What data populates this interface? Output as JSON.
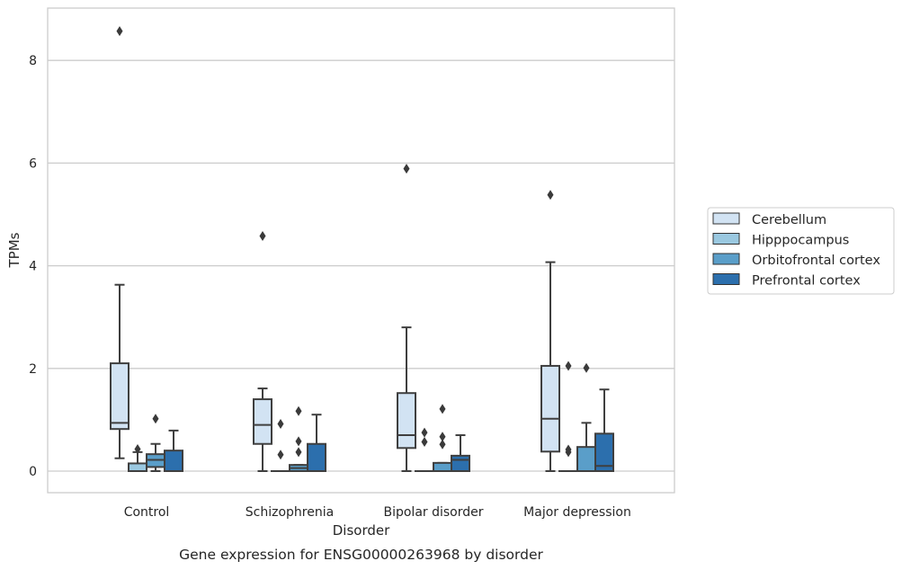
{
  "chart_data": {
    "type": "box",
    "caption": "Gene expression for ENSG00000263968 by disorder",
    "xlabel": "Disorder",
    "ylabel": "TPMs",
    "ylim": [
      -0.42,
      9.05
    ],
    "yticks": [
      0,
      2,
      4,
      6,
      8
    ],
    "grid": "horizontal",
    "legend_position": "right",
    "categories": [
      "Control",
      "Schizophrenia",
      "Bipolar disorder",
      "Major depression"
    ],
    "series": [
      {
        "name": "Cerebellum",
        "color": "#d2e3f3",
        "boxes": [
          {
            "whislo": 0.25,
            "q1": 0.82,
            "med": 0.94,
            "q3": 2.1,
            "whishi": 3.63,
            "fliers": [
              8.57
            ]
          },
          {
            "whislo": 0.0,
            "q1": 0.53,
            "med": 0.9,
            "q3": 1.4,
            "whishi": 1.61,
            "fliers": [
              4.58
            ]
          },
          {
            "whislo": 0.0,
            "q1": 0.45,
            "med": 0.7,
            "q3": 1.52,
            "whishi": 2.8,
            "fliers": [
              5.89
            ]
          },
          {
            "whislo": 0.0,
            "q1": 0.38,
            "med": 1.02,
            "q3": 2.05,
            "whishi": 4.07,
            "fliers": [
              5.38
            ]
          }
        ]
      },
      {
        "name": "Hipppocampus",
        "color": "#9ac8e0",
        "boxes": [
          {
            "whislo": 0.0,
            "q1": 0.0,
            "med": 0.0,
            "q3": 0.15,
            "whishi": 0.37,
            "fliers": [
              0.43
            ]
          },
          {
            "whislo": 0.0,
            "q1": 0.0,
            "med": 0.0,
            "q3": 0.0,
            "whishi": 0.0,
            "fliers": [
              0.92,
              0.32
            ]
          },
          {
            "whislo": 0.0,
            "q1": 0.0,
            "med": 0.0,
            "q3": 0.0,
            "whishi": 0.0,
            "fliers": [
              0.75,
              0.57
            ]
          },
          {
            "whislo": 0.0,
            "q1": 0.0,
            "med": 0.0,
            "q3": 0.0,
            "whishi": 0.0,
            "fliers": [
              2.05,
              0.42,
              0.37
            ]
          }
        ]
      },
      {
        "name": "Orbitofrontal cortex",
        "color": "#5a9ec9",
        "boxes": [
          {
            "whislo": 0.0,
            "q1": 0.08,
            "med": 0.22,
            "q3": 0.33,
            "whishi": 0.53,
            "fliers": [
              1.02
            ]
          },
          {
            "whislo": 0.0,
            "q1": 0.0,
            "med": 0.06,
            "q3": 0.12,
            "whishi": 0.12,
            "fliers": [
              1.17,
              0.58,
              0.37
            ]
          },
          {
            "whislo": 0.0,
            "q1": 0.0,
            "med": 0.0,
            "q3": 0.16,
            "whishi": 0.16,
            "fliers": [
              1.21,
              0.67,
              0.52
            ]
          },
          {
            "whislo": 0.0,
            "q1": 0.0,
            "med": 0.0,
            "q3": 0.47,
            "whishi": 0.94,
            "fliers": [
              2.01
            ]
          }
        ]
      },
      {
        "name": "Prefrontal cortex",
        "color": "#2c6fad",
        "boxes": [
          {
            "whislo": 0.0,
            "q1": 0.0,
            "med": 0.0,
            "q3": 0.4,
            "whishi": 0.79,
            "fliers": []
          },
          {
            "whislo": 0.0,
            "q1": 0.0,
            "med": 0.0,
            "q3": 0.53,
            "whishi": 1.1,
            "fliers": []
          },
          {
            "whislo": 0.0,
            "q1": 0.0,
            "med": 0.22,
            "q3": 0.3,
            "whishi": 0.7,
            "fliers": []
          },
          {
            "whislo": 0.0,
            "q1": 0.0,
            "med": 0.1,
            "q3": 0.73,
            "whishi": 1.59,
            "fliers": []
          }
        ]
      }
    ]
  }
}
